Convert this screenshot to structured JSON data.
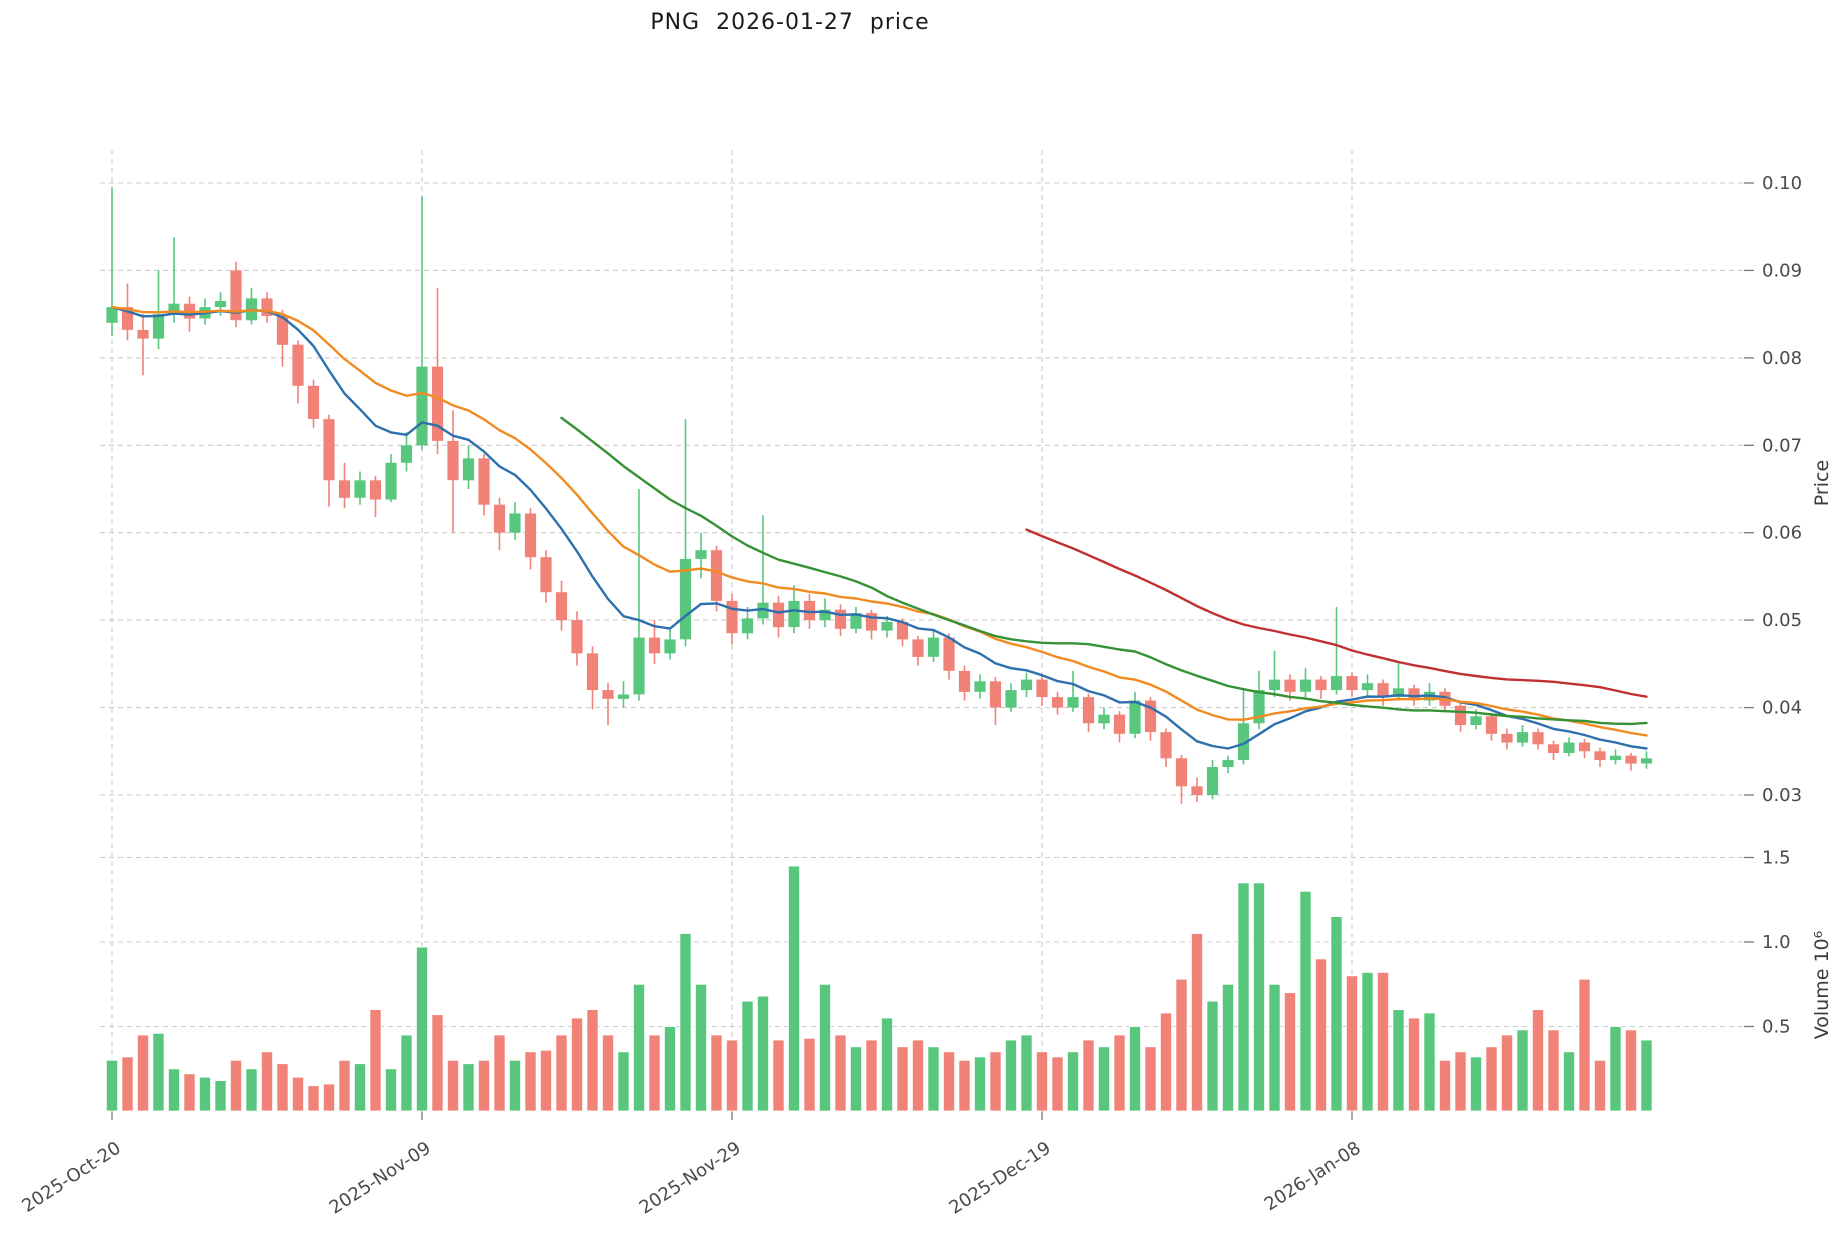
{
  "title": "PNG  2026-01-27  price",
  "colors": {
    "up": "#58c77d",
    "down": "#f08278",
    "ma_fast": "#2e6fad",
    "ma_mid": "#f18a20",
    "ma_slow": "#359135",
    "ma_long": "#c13030",
    "grid": "#cccccc",
    "text": "#3c3c3c",
    "background": "#ffffff"
  },
  "chart_data": {
    "type": "candlestick+volume",
    "title": "PNG  2026-01-27  price",
    "ylabel_price": "Price",
    "ylabel_volume": "Volume  10⁶",
    "price_ylim": [
      0.028,
      0.104
    ],
    "volume_ylim": [
      0,
      1.57
    ],
    "price_ticks": [
      0.03,
      0.04,
      0.05,
      0.06,
      0.07,
      0.08,
      0.09,
      0.1
    ],
    "volume_ticks": [
      0.5,
      1.0,
      1.5
    ],
    "x_tick_labels": [
      "2025-Oct-20",
      "2025-Nov-09",
      "2025-Nov-29",
      "2025-Dec-19",
      "2026-Jan-08"
    ],
    "x_tick_indices": [
      0,
      20,
      40,
      60,
      80
    ],
    "grid": "dashed",
    "legend": "none",
    "moving_averages": [
      {
        "name": "ma-fast",
        "window": 10,
        "kind": "ema",
        "color_key": "ma_fast"
      },
      {
        "name": "ma-mid",
        "window": 20,
        "kind": "ema",
        "color_key": "ma_mid"
      },
      {
        "name": "ma-slow",
        "window": 30,
        "kind": "sma",
        "color_key": "ma_slow"
      },
      {
        "name": "ma-long",
        "window": 60,
        "kind": "sma",
        "color_key": "ma_long"
      }
    ],
    "candles_columns": [
      "date",
      "open",
      "high",
      "low",
      "close",
      "volume_millions"
    ],
    "candles": [
      [
        "2025-10-20",
        0.084,
        0.0995,
        0.0825,
        0.0858,
        0.3
      ],
      [
        "2025-10-21",
        0.0858,
        0.0885,
        0.082,
        0.0832,
        0.32
      ],
      [
        "2025-10-22",
        0.0832,
        0.085,
        0.078,
        0.0822,
        0.45
      ],
      [
        "2025-10-23",
        0.0822,
        0.09,
        0.081,
        0.085,
        0.46
      ],
      [
        "2025-10-24",
        0.085,
        0.0938,
        0.084,
        0.0862,
        0.25
      ],
      [
        "2025-10-25",
        0.0862,
        0.087,
        0.083,
        0.0845,
        0.22
      ],
      [
        "2025-10-26",
        0.0845,
        0.0868,
        0.0838,
        0.0858,
        0.2
      ],
      [
        "2025-10-27",
        0.0858,
        0.0875,
        0.0848,
        0.0865,
        0.18
      ],
      [
        "2025-10-28",
        0.09,
        0.091,
        0.0835,
        0.0843,
        0.3
      ],
      [
        "2025-10-29",
        0.0843,
        0.088,
        0.0838,
        0.0868,
        0.25
      ],
      [
        "2025-10-30",
        0.0868,
        0.0875,
        0.084,
        0.0848,
        0.35
      ],
      [
        "2025-10-31",
        0.0848,
        0.0855,
        0.079,
        0.0815,
        0.28
      ],
      [
        "2025-11-01",
        0.0815,
        0.082,
        0.0748,
        0.0768,
        0.2
      ],
      [
        "2025-11-02",
        0.0768,
        0.0775,
        0.072,
        0.073,
        0.15
      ],
      [
        "2025-11-03",
        0.073,
        0.0735,
        0.063,
        0.066,
        0.16
      ],
      [
        "2025-11-04",
        0.066,
        0.068,
        0.0628,
        0.064,
        0.3
      ],
      [
        "2025-11-05",
        0.064,
        0.067,
        0.0632,
        0.066,
        0.28
      ],
      [
        "2025-11-06",
        0.066,
        0.0665,
        0.0618,
        0.0638,
        0.6
      ],
      [
        "2025-11-07",
        0.0638,
        0.069,
        0.0635,
        0.068,
        0.25
      ],
      [
        "2025-11-08",
        0.068,
        0.0715,
        0.067,
        0.07,
        0.45
      ],
      [
        "2025-11-09",
        0.07,
        0.0985,
        0.0695,
        0.079,
        0.97
      ],
      [
        "2025-11-10",
        0.079,
        0.088,
        0.069,
        0.0705,
        0.57
      ],
      [
        "2025-11-11",
        0.0705,
        0.074,
        0.06,
        0.066,
        0.3
      ],
      [
        "2025-11-12",
        0.066,
        0.07,
        0.065,
        0.0685,
        0.28
      ],
      [
        "2025-11-13",
        0.0685,
        0.069,
        0.062,
        0.0632,
        0.3
      ],
      [
        "2025-11-14",
        0.0632,
        0.064,
        0.058,
        0.06,
        0.45
      ],
      [
        "2025-11-15",
        0.06,
        0.0635,
        0.0592,
        0.0622,
        0.3
      ],
      [
        "2025-11-16",
        0.0622,
        0.0628,
        0.0558,
        0.0572,
        0.35
      ],
      [
        "2025-11-17",
        0.0572,
        0.058,
        0.052,
        0.0532,
        0.36
      ],
      [
        "2025-11-18",
        0.0532,
        0.0545,
        0.0488,
        0.05,
        0.45
      ],
      [
        "2025-11-19",
        0.05,
        0.051,
        0.0448,
        0.0462,
        0.55
      ],
      [
        "2025-11-20",
        0.0462,
        0.047,
        0.0398,
        0.042,
        0.6
      ],
      [
        "2025-11-21",
        0.042,
        0.0428,
        0.038,
        0.041,
        0.45
      ],
      [
        "2025-11-22",
        0.041,
        0.043,
        0.04,
        0.0415,
        0.35
      ],
      [
        "2025-11-23",
        0.0415,
        0.065,
        0.0408,
        0.048,
        0.75
      ],
      [
        "2025-11-24",
        0.048,
        0.05,
        0.045,
        0.0462,
        0.45
      ],
      [
        "2025-11-25",
        0.0462,
        0.049,
        0.0455,
        0.0478,
        0.5
      ],
      [
        "2025-11-26",
        0.0478,
        0.073,
        0.047,
        0.057,
        1.05
      ],
      [
        "2025-11-27",
        0.057,
        0.06,
        0.0548,
        0.058,
        0.75
      ],
      [
        "2025-11-28",
        0.058,
        0.0585,
        0.051,
        0.0522,
        0.45
      ],
      [
        "2025-11-29",
        0.0522,
        0.053,
        0.0472,
        0.0485,
        0.42
      ],
      [
        "2025-11-30",
        0.0485,
        0.0515,
        0.0478,
        0.0502,
        0.65
      ],
      [
        "2025-12-01",
        0.0502,
        0.062,
        0.0495,
        0.052,
        0.68
      ],
      [
        "2025-12-02",
        0.052,
        0.0528,
        0.048,
        0.0492,
        0.42
      ],
      [
        "2025-12-03",
        0.0492,
        0.054,
        0.0485,
        0.0522,
        1.45
      ],
      [
        "2025-12-04",
        0.0522,
        0.053,
        0.049,
        0.05,
        0.43
      ],
      [
        "2025-12-05",
        0.05,
        0.0525,
        0.0492,
        0.0512,
        0.75
      ],
      [
        "2025-12-06",
        0.0512,
        0.0518,
        0.0482,
        0.049,
        0.45
      ],
      [
        "2025-12-07",
        0.049,
        0.0515,
        0.0485,
        0.0508,
        0.38
      ],
      [
        "2025-12-08",
        0.0508,
        0.0512,
        0.0478,
        0.0488,
        0.42
      ],
      [
        "2025-12-09",
        0.0488,
        0.0505,
        0.048,
        0.0498,
        0.55
      ],
      [
        "2025-12-10",
        0.0498,
        0.0502,
        0.047,
        0.0478,
        0.38
      ],
      [
        "2025-12-11",
        0.0478,
        0.0482,
        0.0448,
        0.0458,
        0.42
      ],
      [
        "2025-12-12",
        0.0458,
        0.0488,
        0.0452,
        0.048,
        0.38
      ],
      [
        "2025-12-13",
        0.048,
        0.0485,
        0.0432,
        0.0442,
        0.35
      ],
      [
        "2025-12-14",
        0.0442,
        0.0448,
        0.0408,
        0.0418,
        0.3
      ],
      [
        "2025-12-15",
        0.0418,
        0.0438,
        0.041,
        0.043,
        0.32
      ],
      [
        "2025-12-16",
        0.043,
        0.0435,
        0.038,
        0.04,
        0.35
      ],
      [
        "2025-12-17",
        0.04,
        0.0428,
        0.0395,
        0.042,
        0.42
      ],
      [
        "2025-12-18",
        0.042,
        0.044,
        0.0412,
        0.0432,
        0.45
      ],
      [
        "2025-12-19",
        0.0432,
        0.0436,
        0.0402,
        0.0412,
        0.35
      ],
      [
        "2025-12-20",
        0.0412,
        0.0418,
        0.0392,
        0.04,
        0.32
      ],
      [
        "2025-12-21",
        0.04,
        0.0442,
        0.0395,
        0.0412,
        0.35
      ],
      [
        "2025-12-22",
        0.0412,
        0.0416,
        0.0372,
        0.0382,
        0.42
      ],
      [
        "2025-12-23",
        0.0382,
        0.04,
        0.0375,
        0.0392,
        0.38
      ],
      [
        "2025-12-24",
        0.0392,
        0.0396,
        0.036,
        0.037,
        0.45
      ],
      [
        "2025-12-25",
        0.037,
        0.0418,
        0.0365,
        0.0408,
        0.5
      ],
      [
        "2025-12-26",
        0.0408,
        0.0412,
        0.0362,
        0.0372,
        0.38
      ],
      [
        "2025-12-27",
        0.0372,
        0.0376,
        0.0332,
        0.0342,
        0.58
      ],
      [
        "2025-12-28",
        0.0342,
        0.0346,
        0.029,
        0.031,
        0.78
      ],
      [
        "2025-12-29",
        0.031,
        0.032,
        0.0292,
        0.03,
        1.05
      ],
      [
        "2025-12-30",
        0.03,
        0.034,
        0.0295,
        0.0332,
        0.65
      ],
      [
        "2025-12-31",
        0.0332,
        0.0345,
        0.0325,
        0.034,
        0.75
      ],
      [
        "2026-01-01",
        0.034,
        0.042,
        0.0335,
        0.0382,
        1.35
      ],
      [
        "2026-01-02",
        0.0382,
        0.0442,
        0.0375,
        0.042,
        1.35
      ],
      [
        "2026-01-03",
        0.042,
        0.0465,
        0.0412,
        0.0432,
        0.75
      ],
      [
        "2026-01-04",
        0.0432,
        0.0438,
        0.0408,
        0.0418,
        0.7
      ],
      [
        "2026-01-05",
        0.0418,
        0.0445,
        0.0412,
        0.0432,
        1.3
      ],
      [
        "2026-01-06",
        0.0432,
        0.0436,
        0.041,
        0.042,
        0.9
      ],
      [
        "2026-01-07",
        0.042,
        0.0515,
        0.0415,
        0.0436,
        1.15
      ],
      [
        "2026-01-08",
        0.0436,
        0.044,
        0.0412,
        0.042,
        0.8
      ],
      [
        "2026-01-09",
        0.042,
        0.0438,
        0.0412,
        0.0428,
        0.82
      ],
      [
        "2026-01-10",
        0.0428,
        0.0432,
        0.0402,
        0.0412,
        0.82
      ],
      [
        "2026-01-11",
        0.0412,
        0.0452,
        0.0408,
        0.0422,
        0.6
      ],
      [
        "2026-01-12",
        0.0422,
        0.0426,
        0.0402,
        0.0408,
        0.55
      ],
      [
        "2026-01-13",
        0.0408,
        0.0428,
        0.0402,
        0.0418,
        0.58
      ],
      [
        "2026-01-14",
        0.0418,
        0.0422,
        0.0395,
        0.0402,
        0.3
      ],
      [
        "2026-01-15",
        0.0402,
        0.0406,
        0.0372,
        0.038,
        0.35
      ],
      [
        "2026-01-16",
        0.038,
        0.0398,
        0.0375,
        0.039,
        0.32
      ],
      [
        "2026-01-17",
        0.039,
        0.0394,
        0.0362,
        0.037,
        0.38
      ],
      [
        "2026-01-18",
        0.037,
        0.0376,
        0.0352,
        0.036,
        0.45
      ],
      [
        "2026-01-19",
        0.036,
        0.038,
        0.0355,
        0.0372,
        0.48
      ],
      [
        "2026-01-20",
        0.0372,
        0.0376,
        0.0352,
        0.0358,
        0.6
      ],
      [
        "2026-01-21",
        0.0358,
        0.0362,
        0.034,
        0.0348,
        0.48
      ],
      [
        "2026-01-22",
        0.0348,
        0.0366,
        0.0344,
        0.036,
        0.35
      ],
      [
        "2026-01-23",
        0.036,
        0.0364,
        0.0342,
        0.035,
        0.78
      ],
      [
        "2026-01-24",
        0.035,
        0.0354,
        0.0332,
        0.034,
        0.3
      ],
      [
        "2026-01-25",
        0.034,
        0.0352,
        0.0335,
        0.0345,
        0.5
      ],
      [
        "2026-01-26",
        0.0345,
        0.0348,
        0.0328,
        0.0336,
        0.48
      ],
      [
        "2026-01-27",
        0.0336,
        0.035,
        0.033,
        0.0342,
        0.42
      ]
    ]
  }
}
